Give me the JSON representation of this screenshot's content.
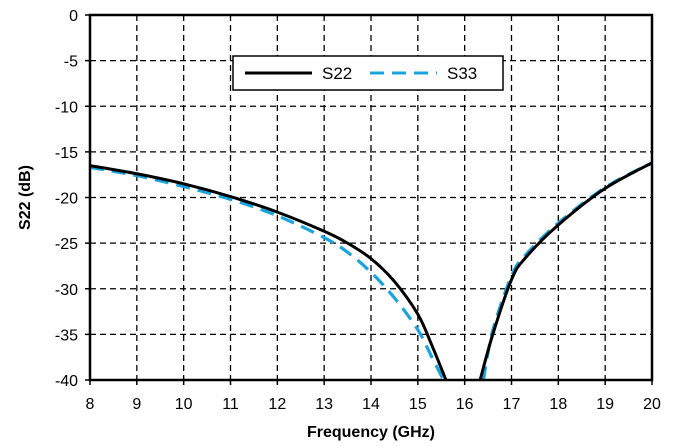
{
  "chart_data": {
    "type": "line",
    "title": "",
    "xlabel": "Frequency (GHz)",
    "ylabel": "S22 (dB)",
    "xlim": [
      8,
      20
    ],
    "ylim": [
      -40,
      0
    ],
    "xticks": [
      8,
      9,
      10,
      11,
      12,
      13,
      14,
      15,
      16,
      17,
      18,
      19,
      20
    ],
    "yticks": [
      0,
      -5,
      -10,
      -15,
      -20,
      -25,
      -30,
      -35,
      -40
    ],
    "grid": true,
    "legend": {
      "placement": "top-center"
    },
    "series": [
      {
        "name": "S22",
        "style": "solid",
        "color": "#000000",
        "segments": [
          [
            [
              8,
              -16.5
            ],
            [
              9,
              -17.4
            ],
            [
              10,
              -18.5
            ],
            [
              11,
              -19.9
            ],
            [
              12,
              -21.6
            ],
            [
              13,
              -23.7
            ],
            [
              13.5,
              -25.0
            ],
            [
              14,
              -26.7
            ],
            [
              14.5,
              -29.2
            ],
            [
              15,
              -32.8
            ],
            [
              15.3,
              -36.2
            ],
            [
              15.6,
              -40
            ]
          ],
          [
            [
              16.33,
              -40
            ],
            [
              16.6,
              -35.0
            ],
            [
              17,
              -29.0
            ],
            [
              17.3,
              -26.6
            ],
            [
              18,
              -23.0
            ],
            [
              19,
              -19.0
            ],
            [
              20,
              -16.2
            ]
          ]
        ]
      },
      {
        "name": "S33",
        "style": "dashed",
        "color": "#1aa3de",
        "segments": [
          [
            [
              8,
              -16.7
            ],
            [
              9,
              -17.6
            ],
            [
              10,
              -18.8
            ],
            [
              11,
              -20.2
            ],
            [
              12,
              -22.0
            ],
            [
              13,
              -24.4
            ],
            [
              13.5,
              -26.0
            ],
            [
              14,
              -28.2
            ],
            [
              14.5,
              -31.0
            ],
            [
              15,
              -34.5
            ],
            [
              15.3,
              -37.5
            ],
            [
              15.55,
              -40
            ]
          ],
          [
            [
              16.4,
              -40
            ],
            [
              16.6,
              -34.6
            ],
            [
              17,
              -28.6
            ],
            [
              17.3,
              -26.3
            ],
            [
              18,
              -22.8
            ],
            [
              19,
              -18.9
            ],
            [
              20,
              -16.2
            ]
          ]
        ]
      }
    ]
  }
}
